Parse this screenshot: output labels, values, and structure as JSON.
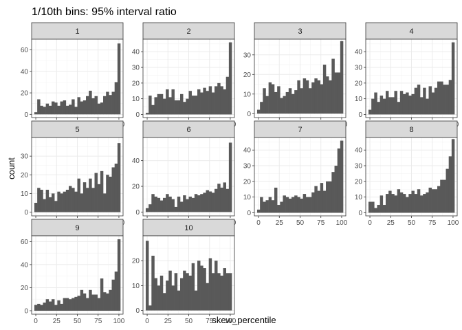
{
  "chart_data": {
    "type": "bar",
    "title": "1/10th bins: 95% interval ratio",
    "xlabel": "skew_percentile",
    "ylabel": "count",
    "xlim": [
      -5,
      105
    ],
    "xticks": [
      0,
      25,
      50,
      75,
      100
    ],
    "bin_centers": [
      0,
      3.45,
      6.9,
      10.34,
      13.79,
      17.24,
      20.69,
      24.14,
      27.59,
      31.03,
      34.48,
      37.93,
      41.38,
      44.83,
      48.28,
      51.72,
      55.17,
      58.62,
      62.07,
      65.52,
      68.97,
      72.41,
      75.86,
      79.31,
      82.76,
      86.21,
      89.66,
      93.1,
      96.55,
      100
    ],
    "colors": {
      "bar": "#595959",
      "panel_bg": "#ffffff",
      "grid": "#ebebeb",
      "strip_bg": "#d9d9d9",
      "border": "#333333"
    },
    "grid": true,
    "facets": [
      {
        "label": "1",
        "ylim": [
          -3,
          70
        ],
        "yticks": [
          0,
          20,
          40,
          60
        ],
        "values": [
          2,
          14,
          8,
          7,
          10,
          8,
          12,
          11,
          8,
          12,
          13,
          8,
          9,
          14,
          7,
          16,
          12,
          13,
          17,
          22,
          15,
          17,
          10,
          11,
          17,
          21,
          18,
          21,
          30,
          66
        ]
      },
      {
        "label": "2",
        "ylim": [
          -2,
          48
        ],
        "yticks": [
          0,
          10,
          20,
          30,
          40
        ],
        "values": [
          1,
          12,
          6,
          11,
          13,
          13,
          10,
          16,
          11,
          16,
          9,
          9,
          13,
          8,
          10,
          15,
          12,
          12,
          16,
          14,
          17,
          15,
          18,
          14,
          18,
          20,
          18,
          16,
          24,
          46
        ]
      },
      {
        "label": "3",
        "ylim": [
          -2,
          38
        ],
        "yticks": [
          0,
          10,
          20,
          30
        ],
        "values": [
          2,
          6,
          13,
          9,
          16,
          15,
          11,
          14,
          8,
          9,
          11,
          13,
          10,
          12,
          17,
          13,
          18,
          17,
          13,
          16,
          18,
          17,
          15,
          25,
          19,
          17,
          28,
          21,
          21,
          37
        ]
      },
      {
        "label": "4",
        "ylim": [
          -2,
          48
        ],
        "yticks": [
          0,
          10,
          20,
          30,
          40
        ],
        "values": [
          3,
          10,
          14,
          8,
          12,
          10,
          15,
          11,
          11,
          15,
          8,
          15,
          13,
          14,
          12,
          13,
          17,
          19,
          11,
          17,
          10,
          18,
          14,
          17,
          21,
          21,
          19,
          19,
          22,
          46
        ]
      },
      {
        "label": "5",
        "ylim": [
          -2,
          40
        ],
        "yticks": [
          0,
          10,
          20,
          30
        ],
        "values": [
          5,
          13,
          12,
          7,
          12,
          8,
          10,
          6,
          11,
          10,
          11,
          12,
          14,
          13,
          11,
          18,
          10,
          16,
          13,
          18,
          13,
          21,
          15,
          22,
          10,
          20,
          19,
          24,
          26,
          37
        ]
      },
      {
        "label": "6",
        "ylim": [
          -3,
          58
        ],
        "yticks": [
          0,
          20,
          40
        ],
        "values": [
          3,
          6,
          14,
          12,
          11,
          9,
          11,
          14,
          12,
          10,
          4,
          12,
          8,
          13,
          10,
          12,
          11,
          14,
          13,
          14,
          15,
          17,
          16,
          15,
          18,
          22,
          19,
          23,
          18,
          54
        ]
      },
      {
        "label": "7",
        "ylim": [
          -2,
          48
        ],
        "yticks": [
          0,
          10,
          20,
          30,
          40
        ],
        "values": [
          2,
          10,
          7,
          8,
          10,
          8,
          16,
          5,
          7,
          11,
          10,
          9,
          10,
          11,
          10,
          9,
          12,
          10,
          10,
          13,
          17,
          14,
          19,
          14,
          20,
          20,
          26,
          30,
          41,
          46
        ]
      },
      {
        "label": "8",
        "ylim": [
          -2,
          48
        ],
        "yticks": [
          0,
          10,
          20,
          30,
          40
        ],
        "values": [
          7,
          7,
          3,
          5,
          11,
          5,
          12,
          14,
          12,
          11,
          15,
          13,
          12,
          10,
          12,
          14,
          12,
          15,
          11,
          12,
          13,
          16,
          15,
          15,
          17,
          21,
          21,
          28,
          36,
          47
        ]
      },
      {
        "label": "9",
        "ylim": [
          -3,
          65
        ],
        "yticks": [
          0,
          20,
          40,
          60
        ],
        "values": [
          5,
          6,
          5,
          7,
          10,
          8,
          10,
          5,
          9,
          6,
          11,
          11,
          10,
          11,
          12,
          13,
          18,
          15,
          11,
          18,
          14,
          14,
          11,
          28,
          16,
          15,
          18,
          27,
          34,
          62
        ]
      },
      {
        "label": "10",
        "ylim": [
          -1.5,
          30
        ],
        "yticks": [
          0,
          10,
          20
        ],
        "values": [
          28,
          2,
          22,
          13,
          10,
          14,
          7,
          12,
          16,
          10,
          15,
          8,
          13,
          16,
          15,
          14,
          19,
          8,
          20,
          18,
          17,
          11,
          21,
          15,
          20,
          15,
          14,
          17,
          15,
          15
        ]
      }
    ]
  }
}
